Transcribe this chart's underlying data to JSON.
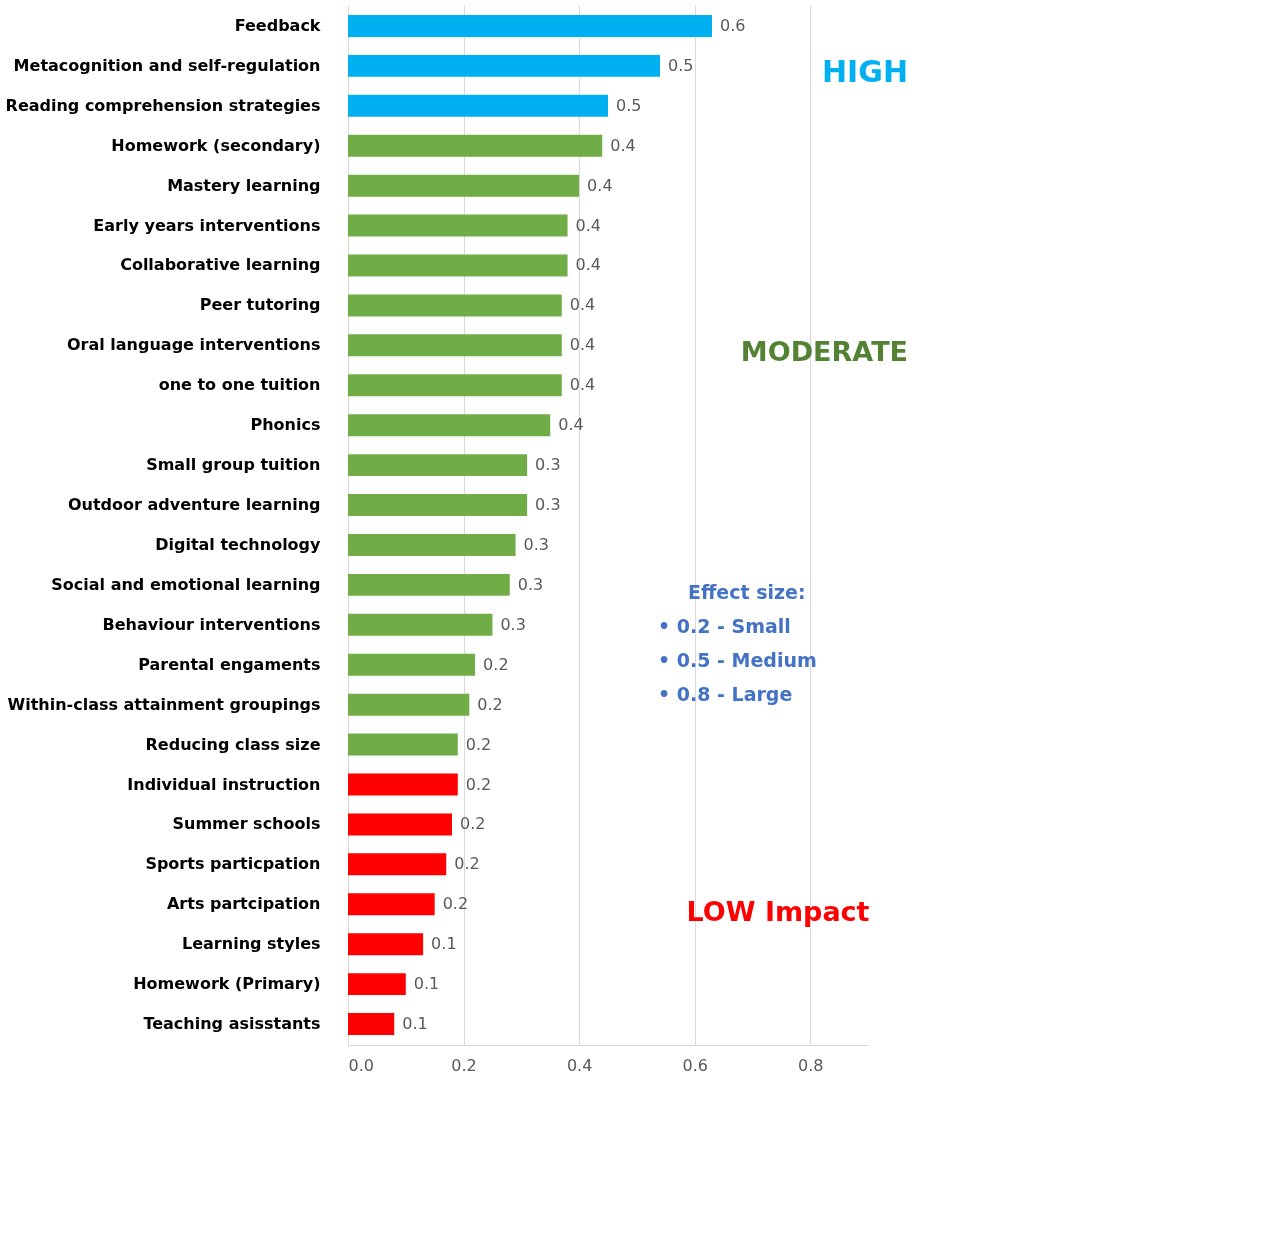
{
  "chart_data": {
    "type": "bar",
    "orientation": "horizontal",
    "categories": [
      "Feedback",
      "Metacognition and self-regulation",
      "Reading comprehension strategies",
      "Homework (secondary)",
      "Mastery learning",
      "Early years interventions",
      "Collaborative learning",
      "Peer tutoring",
      "Oral language interventions",
      "one to one tuition",
      "Phonics",
      "Small group tuition",
      "Outdoor adventure learning",
      "Digital technology",
      "Social and emotional learning",
      "Behaviour interventions",
      "Parental engaments",
      "Within-class attainment groupings",
      "Reducing class size",
      "Individual instruction",
      "Summer schools",
      "Sports particpation",
      "Arts partcipation",
      "Learning styles",
      "Homework (Primary)",
      "Teaching asisstants"
    ],
    "values": [
      0.63,
      0.54,
      0.45,
      0.44,
      0.4,
      0.38,
      0.38,
      0.37,
      0.37,
      0.37,
      0.35,
      0.31,
      0.31,
      0.29,
      0.28,
      0.25,
      0.22,
      0.21,
      0.19,
      0.19,
      0.18,
      0.17,
      0.15,
      0.13,
      0.1,
      0.08
    ],
    "colors": [
      "#00b0f0",
      "#00b0f0",
      "#00b0f0",
      "#70ad47",
      "#70ad47",
      "#70ad47",
      "#70ad47",
      "#70ad47",
      "#70ad47",
      "#70ad47",
      "#70ad47",
      "#70ad47",
      "#70ad47",
      "#70ad47",
      "#70ad47",
      "#70ad47",
      "#70ad47",
      "#70ad47",
      "#70ad47",
      "#ff0000",
      "#ff0000",
      "#ff0000",
      "#ff0000",
      "#ff0000",
      "#ff0000",
      "#ff0000"
    ],
    "value_labels": [
      "0.6",
      "0.5",
      "0.5",
      "0.4",
      "0.4",
      "0.4",
      "0.4",
      "0.4",
      "0.4",
      "0.4",
      "0.4",
      "0.3",
      "0.3",
      "0.3",
      "0.3",
      "0.3",
      "0.2",
      "0.2",
      "0.2",
      "0.2",
      "0.2",
      "0.2",
      "0.2",
      "0.1",
      "0.1",
      "0.1"
    ],
    "xlim": [
      0,
      0.9
    ],
    "xticks": [
      {
        "value": 0,
        "label": "0.0"
      },
      0.2,
      0.4,
      0.6,
      0.8
    ],
    "grid": "x",
    "annotations": [
      "HIGH",
      "MODERATE",
      "LOW Impact",
      "Effect size:",
      "•     0.2 - Small",
      "•        0.5 - Medium",
      "•      0.8 - Large"
    ]
  }
}
